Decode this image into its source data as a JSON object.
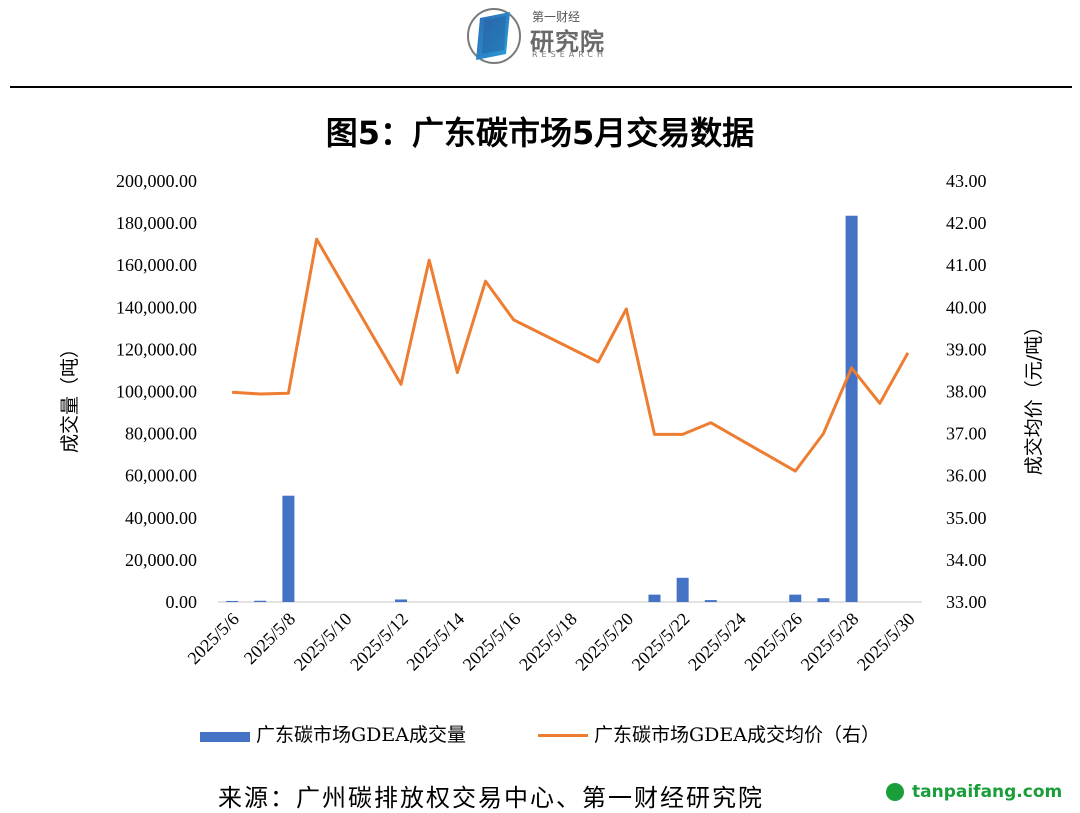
{
  "header": {
    "logo_line1": "第一财经",
    "logo_line2": "研究院",
    "logo_line3": "RESEARCH"
  },
  "title": "图5：广东碳市场5月交易数据",
  "source": "来源：广州碳排放权交易中心、第一财经研究院",
  "watermark": "tanpaifang.com",
  "colors": {
    "bar": "#4472C4",
    "line": "#ED7D31"
  },
  "chart_data": {
    "type": "bar+line",
    "x_tick_labels": [
      "2025/5/6",
      "2025/5/8",
      "2025/5/10",
      "2025/5/12",
      "2025/5/14",
      "2025/5/16",
      "2025/5/18",
      "2025/5/20",
      "2025/5/22",
      "2025/5/24",
      "2025/5/26",
      "2025/5/28",
      "2025/5/30"
    ],
    "ylabel_left": "成交量（吨）",
    "ylabel_right": "成交均价（元/吨）",
    "y_left_ticks": [
      "0.00",
      "20,000.00",
      "40,000.00",
      "60,000.00",
      "80,000.00",
      "100,000.00",
      "120,000.00",
      "140,000.00",
      "160,000.00",
      "180,000.00",
      "200,000.00"
    ],
    "y_right_ticks": [
      "33.00",
      "34.00",
      "35.00",
      "36.00",
      "37.00",
      "38.00",
      "39.00",
      "40.00",
      "41.00",
      "42.00",
      "43.00"
    ],
    "y_left_range": [
      0,
      200000
    ],
    "y_right_range": [
      33,
      43
    ],
    "series": [
      {
        "name": "广东碳市场GDEA成交量",
        "type": "bar",
        "axis": "left",
        "points": [
          {
            "x": "2025/5/6",
            "y": 500
          },
          {
            "x": "2025/5/7",
            "y": 600
          },
          {
            "x": "2025/5/8",
            "y": 50500
          },
          {
            "x": "2025/5/12",
            "y": 1200
          },
          {
            "x": "2025/5/21",
            "y": 3500
          },
          {
            "x": "2025/5/22",
            "y": 11500
          },
          {
            "x": "2025/5/23",
            "y": 900
          },
          {
            "x": "2025/5/26",
            "y": 3500
          },
          {
            "x": "2025/5/27",
            "y": 1800
          },
          {
            "x": "2025/5/28",
            "y": 183500
          }
        ]
      },
      {
        "name": "广东碳市场GDEA成交均价（右）",
        "type": "line",
        "axis": "right",
        "points": [
          {
            "x": "2025/5/6",
            "y": 37.98
          },
          {
            "x": "2025/5/7",
            "y": 37.94
          },
          {
            "x": "2025/5/8",
            "y": 37.96
          },
          {
            "x": "2025/5/9",
            "y": 41.62
          },
          {
            "x": "2025/5/12",
            "y": 38.17
          },
          {
            "x": "2025/5/13",
            "y": 41.12
          },
          {
            "x": "2025/5/14",
            "y": 38.45
          },
          {
            "x": "2025/5/15",
            "y": 40.62
          },
          {
            "x": "2025/5/16",
            "y": 39.7
          },
          {
            "x": "2025/5/19",
            "y": 38.7
          },
          {
            "x": "2025/5/20",
            "y": 39.96
          },
          {
            "x": "2025/5/21",
            "y": 36.98
          },
          {
            "x": "2025/5/22",
            "y": 36.98
          },
          {
            "x": "2025/5/23",
            "y": 37.26
          },
          {
            "x": "2025/5/26",
            "y": 36.11
          },
          {
            "x": "2025/5/27",
            "y": 37.0
          },
          {
            "x": "2025/5/28",
            "y": 38.56
          },
          {
            "x": "2025/5/29",
            "y": 37.72
          },
          {
            "x": "2025/5/30",
            "y": 38.92
          }
        ]
      }
    ],
    "legend_position": "bottom",
    "grid": false
  }
}
